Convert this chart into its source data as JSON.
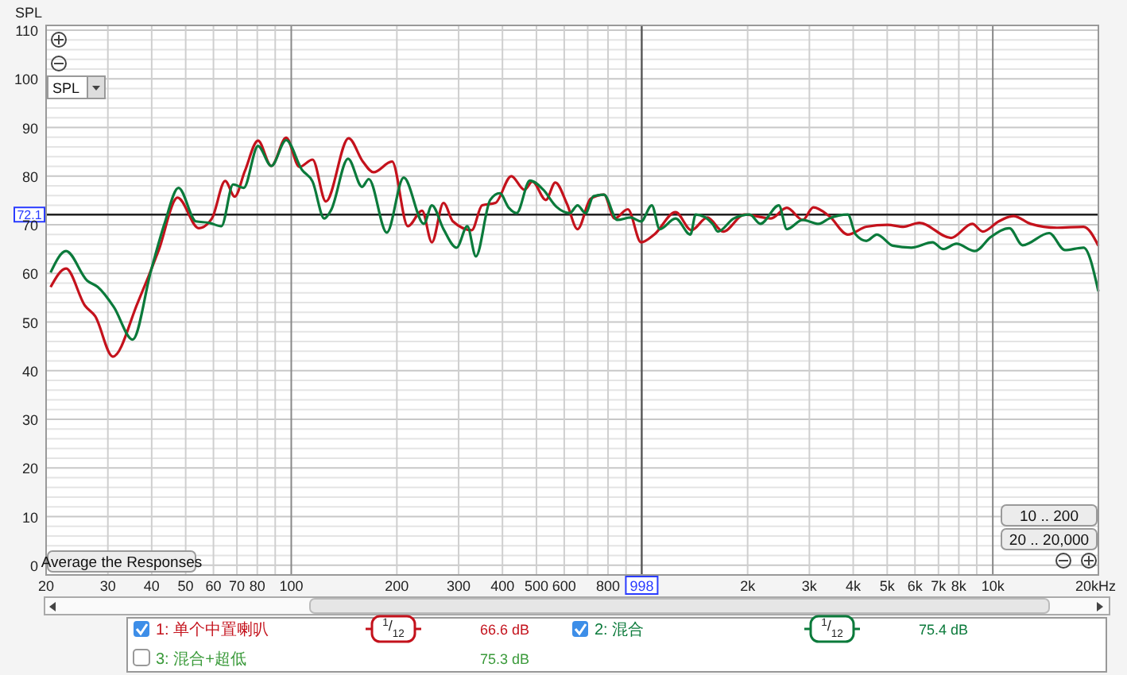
{
  "chart_data": {
    "type": "line",
    "ylabel": "SPL",
    "log": "x",
    "grid": true,
    "legend": "bottom",
    "line_style": "solid",
    "marker": "none",
    "xlim": [
      20,
      20000
    ],
    "ylim": [
      -2,
      111
    ],
    "xticks": [
      20,
      30,
      40,
      50,
      60,
      70,
      80,
      {
        "value": 90,
        "label": null
      },
      100,
      200,
      300,
      400,
      500,
      600,
      {
        "value": 700,
        "label": null
      },
      800,
      {
        "value": 900,
        "label": null
      },
      {
        "value": 2000,
        "label": "2k"
      },
      {
        "value": 3000,
        "label": "3k"
      },
      {
        "value": 4000,
        "label": "4k"
      },
      {
        "value": 5000,
        "label": "5k"
      },
      {
        "value": 6000,
        "label": "6k"
      },
      {
        "value": 7000,
        "label": "7k"
      },
      {
        "value": 8000,
        "label": "8k"
      },
      {
        "value": 9000,
        "label": null
      },
      {
        "value": 10000,
        "label": "10k"
      },
      {
        "value": 20000,
        "label": "20k"
      }
    ],
    "xlabel": "Hz",
    "yticks": [
      0,
      {
        "value": 2,
        "label": null
      },
      {
        "value": 4,
        "label": null
      },
      {
        "value": 6,
        "label": null
      },
      {
        "value": 8,
        "label": null
      },
      10,
      {
        "value": 12,
        "label": null
      },
      {
        "value": 14,
        "label": null
      },
      {
        "value": 16,
        "label": null
      },
      {
        "value": 18,
        "label": null
      },
      20,
      {
        "value": 22,
        "label": null
      },
      {
        "value": 24,
        "label": null
      },
      {
        "value": 26,
        "label": null
      },
      {
        "value": 28,
        "label": null
      },
      30,
      {
        "value": 32,
        "label": null
      },
      {
        "value": 34,
        "label": null
      },
      {
        "value": 36,
        "label": null
      },
      {
        "value": 38,
        "label": null
      },
      40,
      {
        "value": 42,
        "label": null
      },
      {
        "value": 44,
        "label": null
      },
      {
        "value": 46,
        "label": null
      },
      {
        "value": 48,
        "label": null
      },
      50,
      {
        "value": 52,
        "label": null
      },
      {
        "value": 54,
        "label": null
      },
      {
        "value": 56,
        "label": null
      },
      {
        "value": 58,
        "label": null
      },
      60,
      {
        "value": 62,
        "label": null
      },
      {
        "value": 64,
        "label": null
      },
      {
        "value": 66,
        "label": null
      },
      {
        "value": 68,
        "label": null
      },
      70,
      {
        "value": 72,
        "label": null
      },
      {
        "value": 74,
        "label": null
      },
      {
        "value": 76,
        "label": null
      },
      {
        "value": 78,
        "label": null
      },
      80,
      {
        "value": 82,
        "label": null
      },
      {
        "value": 84,
        "label": null
      },
      {
        "value": 86,
        "label": null
      },
      {
        "value": 88,
        "label": null
      },
      90,
      {
        "value": 92,
        "label": null
      },
      {
        "value": 94,
        "label": null
      },
      {
        "value": 96,
        "label": null
      },
      {
        "value": 98,
        "label": null
      },
      100,
      {
        "value": 102,
        "label": null
      },
      {
        "value": 104,
        "label": null
      },
      {
        "value": 106,
        "label": null
      },
      {
        "value": 108,
        "label": null
      },
      110
    ],
    "ref_lines": [
      {
        "axis": "y",
        "value": 72.1,
        "label": "72.1",
        "color": "#222222"
      },
      {
        "axis": "x",
        "value": 998,
        "label": "998",
        "color": "#555555"
      }
    ],
    "series": [
      {
        "name": "1: 单个中置喇叭",
        "color": "#c4121c",
        "x": [
          20.6,
          22.8,
          25.8,
          27.6,
          31.0,
          36.5,
          41.9,
          47.4,
          54.5,
          59.4,
          64.8,
          69.0,
          73.7,
          80.4,
          87.7,
          96.7,
          105.5,
          115,
          125.5,
          145.7,
          160,
          171.6,
          193.8,
          215,
          236,
          251.7,
          271.7,
          289,
          327,
          350,
          382,
          424,
          462,
          487,
          532,
          566,
          611,
          655,
          714,
          779,
          835,
          911,
          994,
          1084,
          1246,
          1383,
          1535,
          1704,
          1958,
          2331,
          2587,
          2872,
          3079,
          3417,
          3861,
          4362,
          5013,
          5563,
          6175,
          7605,
          8740,
          9366,
          10399,
          11462,
          12812,
          15247,
          18144,
          20000
        ],
        "values": [
          57.2,
          61,
          53.4,
          51.2,
          42.9,
          54,
          64.8,
          75.6,
          69.3,
          71.3,
          79,
          75.8,
          81,
          87.3,
          82.1,
          87.9,
          81.9,
          83.4,
          74.8,
          87.8,
          83,
          80.8,
          83,
          69.7,
          72.9,
          66.4,
          74.5,
          70.7,
          68.9,
          74,
          74.5,
          80,
          77.2,
          78.9,
          75.1,
          78.7,
          74.3,
          69.1,
          75.4,
          76.2,
          71.3,
          73.2,
          66.4,
          68,
          72.6,
          68.9,
          71.5,
          68.6,
          72.1,
          71.3,
          73.5,
          71,
          73.6,
          71.8,
          68,
          69.6,
          70,
          69.6,
          70.4,
          67.3,
          70.2,
          68.6,
          70.7,
          71.8,
          70.2,
          69.4,
          69.6,
          65.7
        ]
      },
      {
        "name": "2: 混合",
        "color": "#0b7a3b",
        "x": [
          20.6,
          22.8,
          26.2,
          28.1,
          31.2,
          35.3,
          39.8,
          43.5,
          47.7,
          53.5,
          58.4,
          63.2,
          68.3,
          73.2,
          80.4,
          87.7,
          96.7,
          107.3,
          115,
          124.2,
          130,
          145.2,
          159.2,
          166.3,
          187.2,
          209.2,
          238.8,
          251.7,
          271.7,
          296,
          317.6,
          336,
          369,
          393,
          417,
          439,
          479,
          523,
          570,
          622,
          655,
          690,
          727,
          779,
          850,
          927,
          994,
          1066,
          1123,
          1246,
          1374,
          1422,
          1589,
          1646,
          1826,
          2028,
          2175,
          2455,
          2587,
          2872,
          3189,
          3417,
          3861,
          4066,
          4362,
          4675,
          5187,
          5860,
          6733,
          7219,
          7876,
          8892,
          9873,
          11150,
          12162,
          14474,
          16058,
          18144,
          20000
        ],
        "values": [
          60.2,
          64.6,
          58.5,
          57.2,
          53.1,
          46.4,
          60.5,
          70.2,
          77.6,
          70.7,
          70.4,
          69.7,
          78.3,
          77.6,
          86.2,
          82.1,
          87.4,
          81.3,
          78.9,
          71.3,
          73.1,
          83.6,
          77.8,
          79.4,
          68.4,
          79.7,
          70.2,
          74,
          69.1,
          65.3,
          69.7,
          63.5,
          75.1,
          76.5,
          73.5,
          72.4,
          79.1,
          77.2,
          73.7,
          72.4,
          74,
          72.4,
          75.9,
          76.2,
          71,
          71.5,
          70.7,
          74,
          69.1,
          71.3,
          68,
          72.1,
          70.2,
          68.6,
          71.3,
          72.1,
          70.2,
          74,
          69.1,
          71,
          70.2,
          71.3,
          72.1,
          68,
          66.7,
          68,
          65.7,
          65.3,
          66.4,
          65,
          66.1,
          64.6,
          67.5,
          69.3,
          65.8,
          68.3,
          64.8,
          65.3,
          56.3
        ]
      }
    ],
    "annotations": [
      "SPL",
      "Average the Responses",
      "10 .. 200",
      "20 .. 20,000",
      "$^{1}$/$_{12}$",
      "66.6 dB",
      "$^{1}$/$_{12}$",
      "75.4 dB",
      "3: 混合+超低",
      "75.3 dB"
    ]
  }
}
